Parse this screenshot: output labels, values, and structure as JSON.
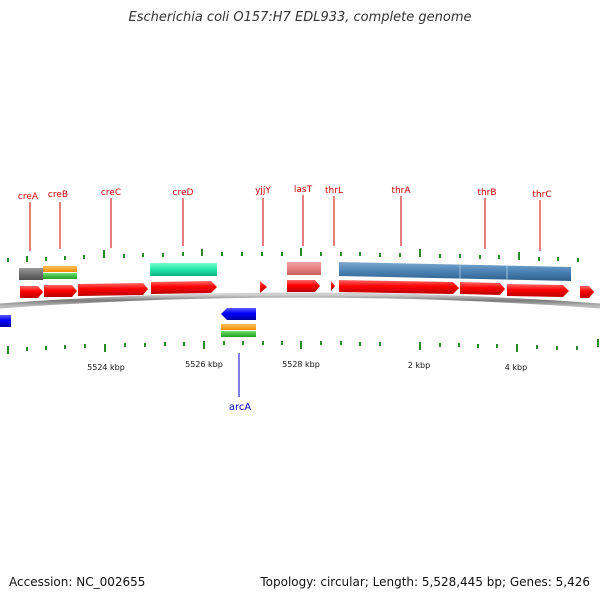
{
  "title": "Escherichia coli O157:H7 EDL933, complete genome",
  "footer": {
    "accession": "Accession: NC_002655",
    "summary": "Topology: circular; Length: 5,528,445 bp; Genes: 5,426"
  },
  "axis_labels": [
    "5524 kbp",
    "5526 kbp",
    "5528 kbp",
    "2 kbp",
    "4 kbp"
  ],
  "genes_top": [
    "creA",
    "creB",
    "creC",
    "creD",
    "yjjY",
    "lasT",
    "thrL",
    "thrA",
    "thrB",
    "thrC"
  ],
  "genes_bottom": [
    "arcA"
  ],
  "colors": {
    "gene_forward": "#ff0000",
    "gene_reverse": "#0000ff",
    "label_top": "#cc0000",
    "label_bottom": "#0000cc",
    "tick": "#2a8a2a",
    "backbone": "#888888"
  }
}
